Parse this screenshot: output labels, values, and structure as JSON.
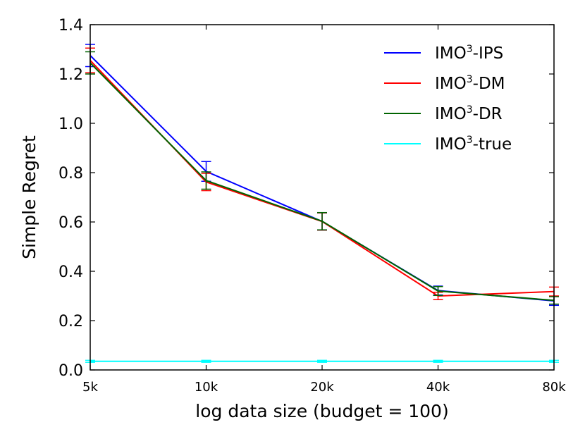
{
  "chart_data": {
    "type": "line",
    "title": "",
    "xlabel": "log data size (budget = 100)",
    "ylabel": "Simple Regret",
    "categories": [
      "5k",
      "10k",
      "20k",
      "40k",
      "80k"
    ],
    "ylim": [
      0.0,
      1.4
    ],
    "yticks": [
      "0.0",
      "0.2",
      "0.4",
      "0.6",
      "0.8",
      "1.0",
      "1.2",
      "1.4"
    ],
    "legend_position": "top-right",
    "grid": false,
    "series": [
      {
        "name_base": "IMO",
        "name_sup": "3",
        "name_suffix": "-IPS",
        "color": "#0000ff",
        "values": [
          1.275,
          0.805,
          0.602,
          0.322,
          0.28
        ],
        "errors": [
          0.045,
          0.04,
          0.035,
          0.018,
          0.018
        ]
      },
      {
        "name_base": "IMO",
        "name_sup": "3",
        "name_suffix": "-DM",
        "color": "#ff0000",
        "values": [
          1.255,
          0.762,
          0.602,
          0.3,
          0.318
        ],
        "errors": [
          0.05,
          0.035,
          0.035,
          0.015,
          0.018
        ]
      },
      {
        "name_base": "IMO",
        "name_sup": "3",
        "name_suffix": "-DR",
        "color": "#006400",
        "values": [
          1.245,
          0.768,
          0.603,
          0.32,
          0.282
        ],
        "errors": [
          0.045,
          0.035,
          0.035,
          0.018,
          0.015
        ]
      },
      {
        "name_base": "IMO",
        "name_sup": "3",
        "name_suffix": "-true",
        "color": "#00ffff",
        "values": [
          0.035,
          0.035,
          0.035,
          0.035,
          0.035
        ],
        "errors": [
          0.004,
          0.004,
          0.004,
          0.004,
          0.004
        ]
      }
    ]
  }
}
